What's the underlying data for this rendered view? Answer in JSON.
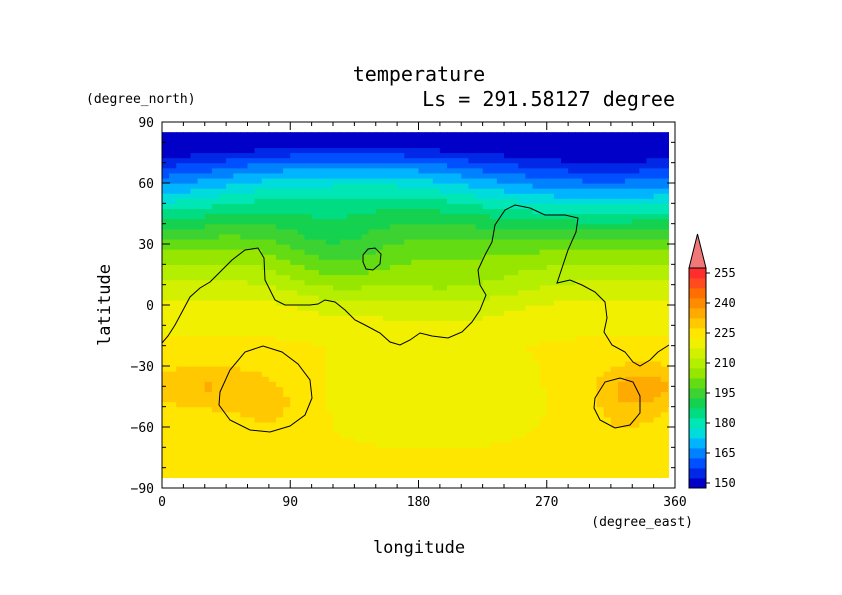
{
  "chart_data": {
    "type": "heatmap",
    "title": "temperature",
    "subtitle": "Ls = 291.58127 degree",
    "xlabel": "longitude",
    "ylabel": "latitude",
    "xunit": "(degree_east)",
    "yunit": "(degree_north)",
    "xlim": [
      0,
      360
    ],
    "ylim": [
      -90,
      90
    ],
    "x_ticks": [
      "0",
      "90",
      "180",
      "270",
      "360"
    ],
    "y_ticks": [
      "90",
      "60",
      "30",
      "0",
      "−30",
      "−60",
      "−90"
    ],
    "x_tick_values": [
      0,
      90,
      180,
      270,
      360
    ],
    "y_tick_values": [
      90,
      60,
      30,
      0,
      -30,
      -60,
      -90
    ],
    "data_lat_range": [
      -85,
      85
    ],
    "colorbar": {
      "levels": [
        150,
        155,
        160,
        165,
        170,
        175,
        180,
        185,
        190,
        195,
        200,
        205,
        210,
        215,
        220,
        225,
        230,
        235,
        240,
        245,
        250,
        255,
        260
      ],
      "tick_labels": [
        "150",
        "165",
        "180",
        "195",
        "210",
        "225",
        "240",
        "255"
      ],
      "tick_values": [
        150,
        165,
        180,
        195,
        210,
        225,
        240,
        255
      ],
      "extend": "max",
      "colors": [
        "#0000c8",
        "#0028e6",
        "#0050ff",
        "#0082ff",
        "#00b4ff",
        "#00dcdc",
        "#00e6b4",
        "#00dc82",
        "#14d250",
        "#3cd232",
        "#64dc14",
        "#96e600",
        "#b4ee00",
        "#d2f000",
        "#f0f000",
        "#ffe600",
        "#ffc800",
        "#ffaa00",
        "#ff8c00",
        "#ff6e00",
        "#ff4b1e",
        "#ff2d2d",
        "#f07878"
      ]
    },
    "grid": false
  }
}
